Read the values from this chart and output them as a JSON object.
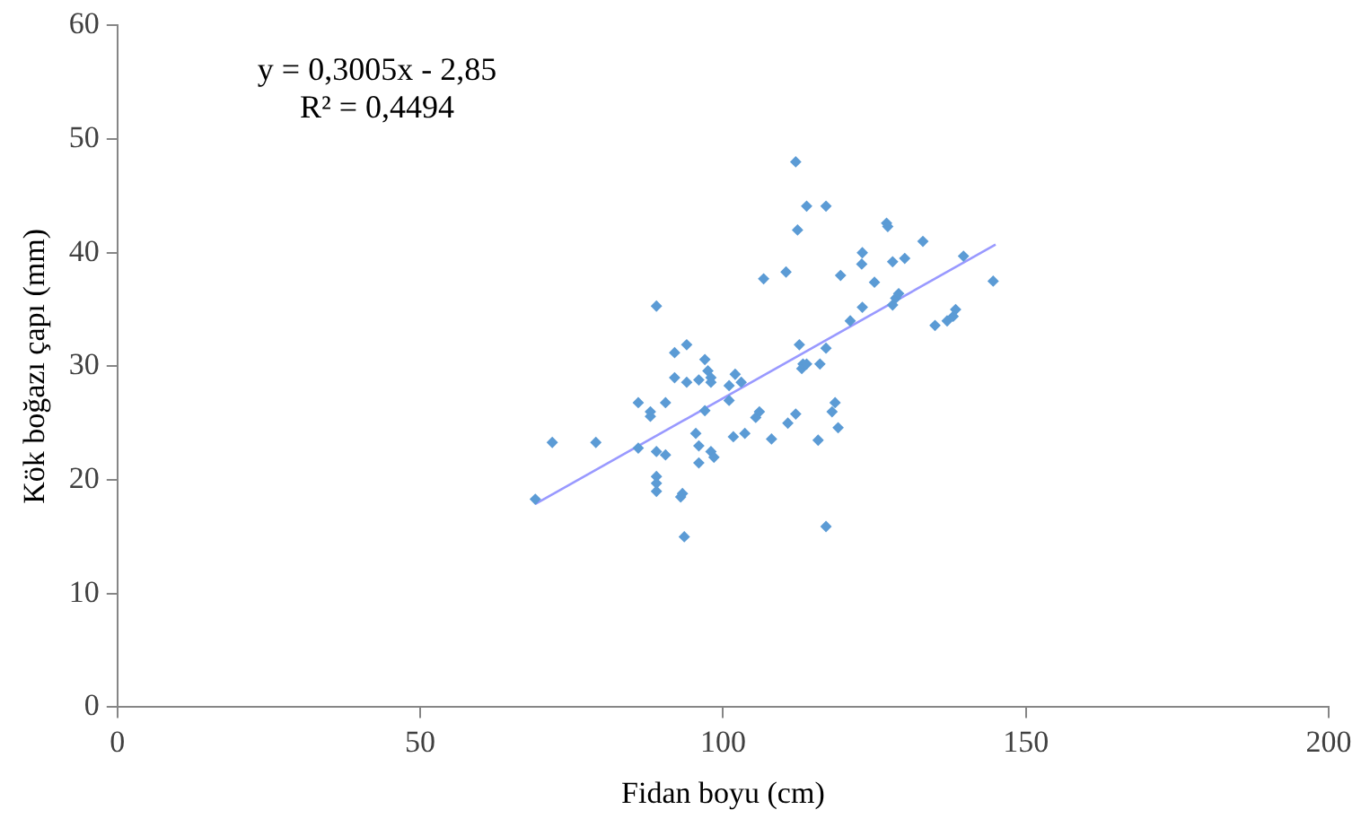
{
  "chart_data": {
    "type": "scatter",
    "xlabel": "Fidan boyu (cm)",
    "ylabel": "Kök boğazı çapı (mm)",
    "annotations": [
      "y = 0,3005x - 2,85",
      "R² = 0,4494"
    ],
    "xlim": [
      0,
      200
    ],
    "xticks": [
      0,
      50,
      100,
      150,
      200
    ],
    "ylim": [
      0,
      60
    ],
    "yticks": [
      0,
      10,
      20,
      30,
      40,
      50,
      60
    ],
    "grid": false,
    "legend": false,
    "marker": "diamond",
    "series": [
      {
        "color": "#5b9bd5",
        "x": [
          69,
          71.8,
          79,
          86,
          86,
          88,
          88,
          89,
          89,
          89,
          89,
          89,
          90.5,
          90.5,
          92,
          92,
          93,
          93.3,
          93.6,
          94,
          94,
          96,
          95.5,
          96,
          96,
          97,
          97,
          97.5,
          98,
          98,
          98,
          98.5,
          101,
          101,
          102,
          103,
          101.7,
          103.6,
          105.4,
          106,
          106.7,
          108,
          110.4,
          110.7,
          112,
          112,
          112.3,
          112.6,
          113,
          113.2,
          113.8,
          113.8,
          116,
          115.7,
          117,
          117,
          117,
          118,
          118.5,
          119,
          119.4,
          121,
          122.9,
          123,
          123,
          125,
          127,
          127.2,
          128,
          128,
          128.5,
          129,
          130,
          133,
          135,
          137,
          138,
          138.4,
          139.7,
          144.6
        ],
        "values": [
          18.3,
          23.3,
          23.3,
          22.8,
          26.8,
          25.6,
          26,
          35.3,
          20.3,
          19.7,
          19,
          22.5,
          26.8,
          22.2,
          29,
          31.2,
          18.5,
          18.8,
          15,
          31.9,
          28.6,
          28.8,
          24.1,
          23,
          21.5,
          26.1,
          30.6,
          29.6,
          29,
          28.6,
          22.5,
          22,
          28.3,
          27,
          29.3,
          28.6,
          23.8,
          24.1,
          25.5,
          26,
          37.7,
          23.6,
          38.3,
          25,
          25.8,
          48,
          42,
          31.9,
          29.8,
          30.2,
          44.1,
          30.2,
          30.2,
          23.5,
          31.6,
          44.1,
          15.9,
          26,
          26.8,
          24.6,
          38,
          34,
          39,
          40,
          35.2,
          37.4,
          42.6,
          42.3,
          39.2,
          35.4,
          36,
          36.4,
          39.5,
          41,
          33.6,
          34,
          34.4,
          35,
          39.7,
          37.5
        ]
      },
      {
        "type": "line",
        "color": "#9999ff",
        "marker": "none",
        "x": [
          69,
          145
        ],
        "values": [
          17.88,
          40.72
        ]
      }
    ]
  }
}
